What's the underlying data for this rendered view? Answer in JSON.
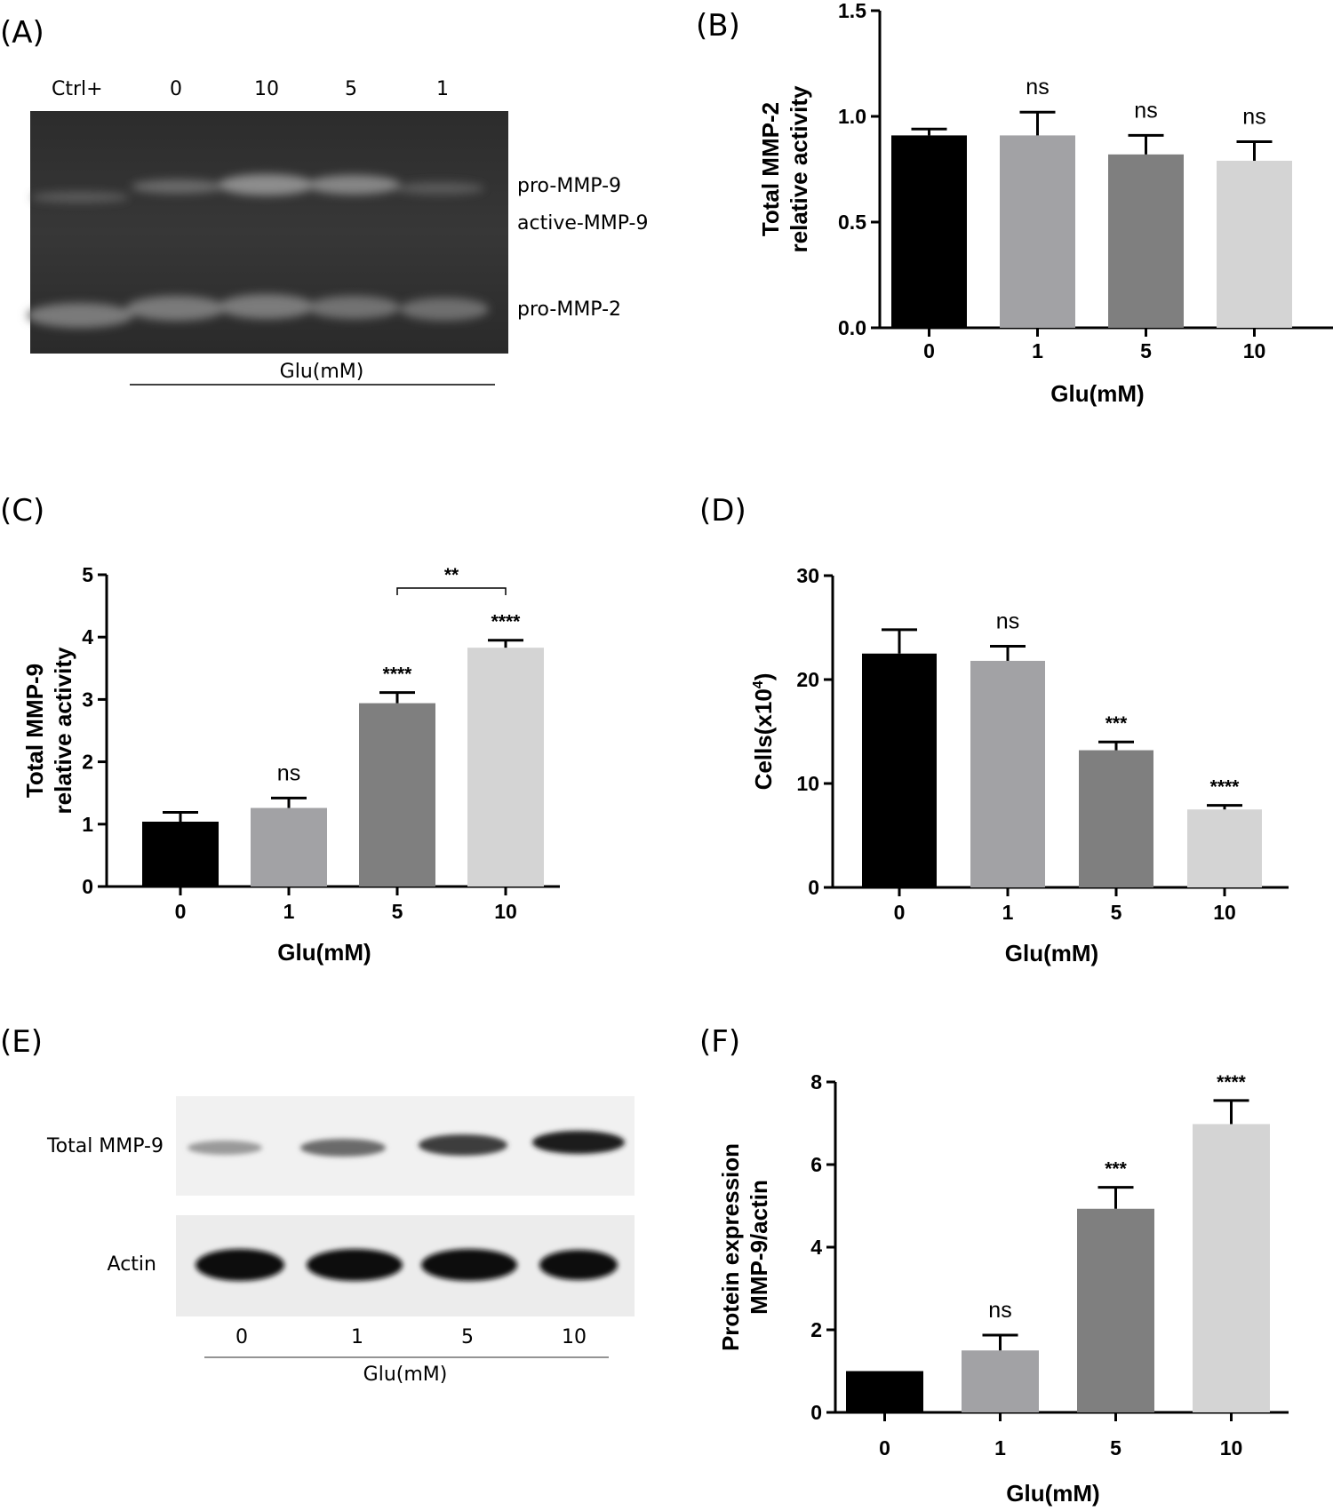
{
  "panels": {
    "A": "(A)",
    "B": "(B)",
    "C": "(C)",
    "D": "(D)",
    "E": "(E)",
    "F": "(F)"
  },
  "zymogram": {
    "lanes": [
      "Ctrl+",
      "0",
      "10",
      "5",
      "1"
    ],
    "bands": [
      "pro-MMP-9",
      "active-MMP-9",
      "pro-MMP-2"
    ],
    "xlabel": "Glu(mM)"
  },
  "western_blot": {
    "rows": [
      "Total MMP-9",
      "Actin"
    ],
    "lanes": [
      "0",
      "1",
      "5",
      "10"
    ],
    "xlabel": "Glu(mM)"
  },
  "chart_data": [
    {
      "panel": "B",
      "type": "bar",
      "categories": [
        "0",
        "1",
        "5",
        "10"
      ],
      "values": [
        0.91,
        0.91,
        0.82,
        0.79
      ],
      "errors": [
        0.03,
        0.11,
        0.09,
        0.09
      ],
      "significance": [
        "",
        "ns",
        "ns",
        "ns"
      ],
      "colors": [
        "#000000",
        "#a2a2a5",
        "#7f7f7f",
        "#d4d4d4"
      ],
      "xlabel": "Glu(mM)",
      "ylabel": [
        "Total MMP-2",
        "relative activity"
      ],
      "ylim": [
        0,
        1.5
      ],
      "yticks": [
        "0.0",
        "0.5",
        "1.0",
        "1.5"
      ],
      "grid": false
    },
    {
      "panel": "C",
      "type": "bar",
      "categories": [
        "0",
        "1",
        "5",
        "10"
      ],
      "values": [
        1.04,
        1.26,
        2.94,
        3.83
      ],
      "errors": [
        0.15,
        0.16,
        0.17,
        0.12
      ],
      "significance": [
        "",
        "ns",
        "****",
        "****"
      ],
      "bracket": {
        "from": "5",
        "to": "10",
        "label": "**"
      },
      "colors": [
        "#000000",
        "#a2a2a5",
        "#7f7f7f",
        "#d4d4d4"
      ],
      "xlabel": "Glu(mM)",
      "ylabel": [
        "Total MMP-9",
        "relative activity"
      ],
      "ylim": [
        0,
        5
      ],
      "yticks": [
        "0",
        "1",
        "2",
        "3",
        "4",
        "5"
      ],
      "grid": false
    },
    {
      "panel": "D",
      "type": "bar",
      "categories": [
        "0",
        "1",
        "5",
        "10"
      ],
      "values": [
        22.5,
        21.8,
        13.2,
        7.5
      ],
      "errors": [
        2.3,
        1.4,
        0.8,
        0.4
      ],
      "significance": [
        "",
        "ns",
        "***",
        "****"
      ],
      "colors": [
        "#000000",
        "#a2a2a5",
        "#7f7f7f",
        "#d4d4d4"
      ],
      "xlabel": "Glu(mM)",
      "ylabel": [
        "Cells(x10",
        "4",
        ")"
      ],
      "ylim": [
        0,
        30
      ],
      "yticks": [
        "0",
        "10",
        "20",
        "30"
      ],
      "grid": false
    },
    {
      "panel": "F",
      "type": "bar",
      "categories": [
        "0",
        "1",
        "5",
        "10"
      ],
      "values": [
        1.0,
        1.5,
        4.93,
        6.98
      ],
      "errors": [
        0,
        0.37,
        0.52,
        0.57
      ],
      "significance": [
        "",
        "ns",
        "***",
        "****"
      ],
      "colors": [
        "#000000",
        "#a2a2a5",
        "#7f7f7f",
        "#d4d4d4"
      ],
      "xlabel": "Glu(mM)",
      "ylabel": [
        "Protein expression",
        "MMP-9/actin"
      ],
      "ylim": [
        0,
        8
      ],
      "yticks": [
        "0",
        "2",
        "4",
        "6",
        "8"
      ],
      "grid": false
    }
  ]
}
